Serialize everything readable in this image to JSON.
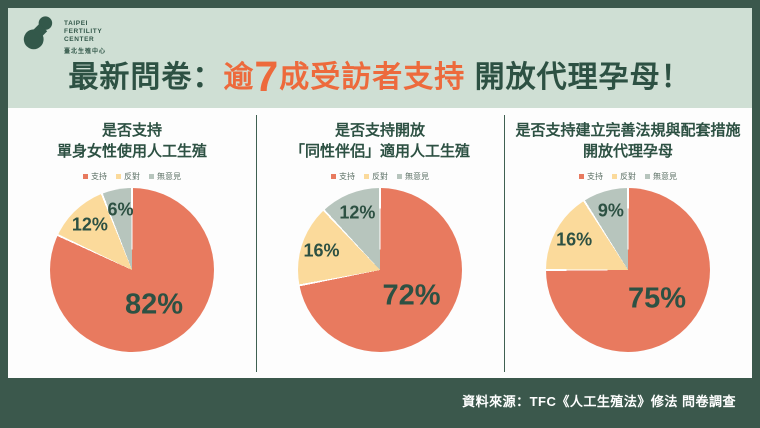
{
  "logo": {
    "en_lines": [
      "TAIPEI",
      "FERTILITY",
      "CENTER"
    ],
    "zh": "臺北生殖中心"
  },
  "header": {
    "title_prefix": "最新問卷：",
    "title_hl_pre": "逾",
    "title_hl_big": "7",
    "title_hl_post": "成受訪者支持",
    "title_suffix": " 開放代理孕母！"
  },
  "colors": {
    "frame_green": "#3b584c",
    "header_sage": "#cfdfd4",
    "text_green": "#2d5143",
    "title_orange": "#ed6a3c",
    "slice_support": "#e87a5f",
    "slice_oppose": "#fbda9b",
    "slice_noopinion": "#b7c5bd"
  },
  "pie_style": {
    "slice_colors": [
      "#e87a5f",
      "#fbda9b",
      "#b7c5bd"
    ],
    "label_color": "#2d5143",
    "legend_labels": [
      "支持",
      "反對",
      "無意見"
    ]
  },
  "chart_data": [
    {
      "type": "pie",
      "title_lines": [
        "是否支持",
        "單身女性使用人工生殖"
      ],
      "categories": [
        "支持",
        "反對",
        "無意見"
      ],
      "values": [
        82,
        12,
        6
      ],
      "unit": "%",
      "start_angle_deg": 0,
      "direction": "clockwise",
      "legend_position": "top"
    },
    {
      "type": "pie",
      "title_lines": [
        "是否支持開放",
        "「同性伴侶」適用人工生殖"
      ],
      "categories": [
        "支持",
        "反對",
        "無意見"
      ],
      "values": [
        72,
        16,
        12
      ],
      "unit": "%",
      "start_angle_deg": 0,
      "direction": "clockwise",
      "legend_position": "top"
    },
    {
      "type": "pie",
      "title_lines": [
        "是否支持建立完善法規與配套措施",
        "開放代理孕母"
      ],
      "categories": [
        "支持",
        "反對",
        "無意見"
      ],
      "values": [
        75,
        16,
        9
      ],
      "unit": "%",
      "start_angle_deg": 0,
      "direction": "clockwise",
      "legend_position": "top"
    }
  ],
  "footer": {
    "source": "資料來源：TFC《人工生殖法》修法 問卷調查"
  }
}
